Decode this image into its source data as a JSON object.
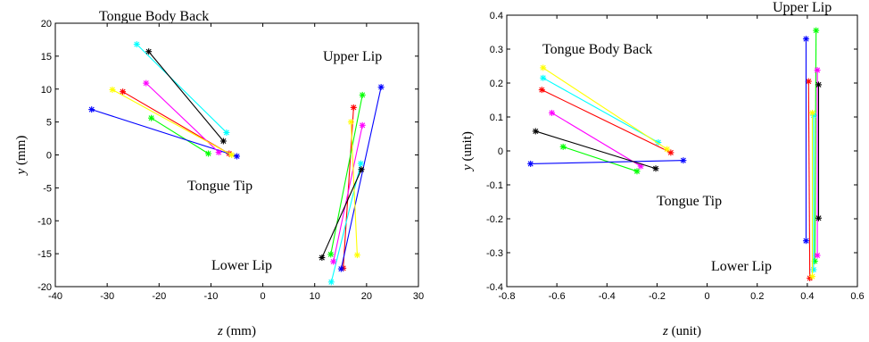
{
  "chart_data": [
    {
      "type": "line",
      "xlabel_var": "z",
      "xlabel_unit": " (mm)",
      "ylabel_var": "y",
      "ylabel_unit": " (mm)",
      "xlim": [
        -40,
        30
      ],
      "ylim": [
        -20,
        20
      ],
      "xticks": [
        -40,
        -30,
        -20,
        -10,
        0,
        10,
        20,
        30
      ],
      "yticks": [
        -20,
        -15,
        -10,
        -5,
        0,
        5,
        10,
        15,
        20
      ],
      "annotations": [
        "Tongue Body Back",
        "Tongue Tip",
        "Upper Lip",
        "Lower Lip"
      ],
      "series": [
        {
          "color": "#ff0000",
          "tongue": [
            [
              -27,
              9.6
            ],
            [
              -6.5,
              0.2
            ]
          ],
          "lip": [
            [
              17.5,
              7.2
            ],
            [
              15.5,
              -17.2
            ]
          ]
        },
        {
          "color": "#00ff00",
          "tongue": [
            [
              -21.5,
              5.6
            ],
            [
              -10.5,
              0.2
            ]
          ],
          "lip": [
            [
              19.2,
              9.1
            ],
            [
              13.1,
              -15.1
            ]
          ]
        },
        {
          "color": "#0000ff",
          "tongue": [
            [
              -33,
              6.9
            ],
            [
              -5,
              -0.2
            ]
          ],
          "lip": [
            [
              22.8,
              10.3
            ],
            [
              15.1,
              -17.3
            ]
          ]
        },
        {
          "color": "#00ffff",
          "tongue": [
            [
              -24.3,
              16.8
            ],
            [
              -7,
              3.4
            ]
          ],
          "lip": [
            [
              18.9,
              -1.3
            ],
            [
              13.2,
              -19.3
            ]
          ]
        },
        {
          "color": "#ff00ff",
          "tongue": [
            [
              -22.5,
              10.9
            ],
            [
              -8.5,
              0.4
            ]
          ],
          "lip": [
            [
              19.2,
              4.5
            ],
            [
              13.6,
              -16.2
            ]
          ]
        },
        {
          "color": "#ffff00",
          "tongue": [
            [
              -29,
              9.9
            ],
            [
              -6,
              0
            ]
          ],
          "lip": [
            [
              17,
              5
            ],
            [
              18.2,
              -15.2
            ]
          ]
        },
        {
          "color": "#000000",
          "tongue": [
            [
              -22,
              15.7
            ],
            [
              -7.6,
              2.1
            ]
          ],
          "lip": [
            [
              19,
              -2.2
            ],
            [
              11.4,
              -15.6
            ]
          ]
        }
      ]
    },
    {
      "type": "line",
      "xlabel_var": "z",
      "xlabel_unit": " (unit)",
      "ylabel_var": "y",
      "ylabel_unit": " (unit)",
      "xlim": [
        -0.8,
        0.6
      ],
      "ylim": [
        -0.4,
        0.4
      ],
      "xticks": [
        "-0.8",
        "-0.6",
        "-0.4",
        "-0.2",
        "0",
        "0.2",
        "0.4",
        "0.6"
      ],
      "yticks": [
        "-0.4",
        "-0.3",
        "-0.2",
        "-0.1",
        "0",
        "0.1",
        "0.2",
        "0.3",
        "0.4"
      ],
      "annotations": [
        "Tongue Body Back",
        "Tongue Tip",
        "Upper Lip",
        "Lower Lip"
      ],
      "series": [
        {
          "color": "#ff0000",
          "tongue": [
            [
              -0.66,
              0.18
            ],
            [
              -0.145,
              -0.005
            ]
          ],
          "lip": [
            [
              0.405,
              0.205
            ],
            [
              0.41,
              -0.375
            ]
          ]
        },
        {
          "color": "#00ff00",
          "tongue": [
            [
              -0.575,
              0.012
            ],
            [
              -0.28,
              -0.06
            ]
          ],
          "lip": [
            [
              0.435,
              0.355
            ],
            [
              0.43,
              -0.325
            ]
          ]
        },
        {
          "color": "#0000ff",
          "tongue": [
            [
              -0.705,
              -0.038
            ],
            [
              -0.095,
              -0.028
            ]
          ],
          "lip": [
            [
              0.395,
              0.33
            ],
            [
              0.395,
              -0.265
            ]
          ]
        },
        {
          "color": "#00ffff",
          "tongue": [
            [
              -0.655,
              0.215
            ],
            [
              -0.195,
              0.025
            ]
          ],
          "lip": [
            [
              0.425,
              0.105
            ],
            [
              0.425,
              -0.35
            ]
          ]
        },
        {
          "color": "#ff00ff",
          "tongue": [
            [
              -0.62,
              0.112
            ],
            [
              -0.265,
              -0.045
            ]
          ],
          "lip": [
            [
              0.44,
              0.238
            ],
            [
              0.44,
              -0.308
            ]
          ]
        },
        {
          "color": "#ffff00",
          "tongue": [
            [
              -0.655,
              0.245
            ],
            [
              -0.16,
              0.005
            ]
          ],
          "lip": [
            [
              0.42,
              0.112
            ],
            [
              0.42,
              -0.37
            ]
          ]
        },
        {
          "color": "#000000",
          "tongue": [
            [
              -0.685,
              0.058
            ],
            [
              -0.205,
              -0.052
            ]
          ],
          "lip": [
            [
              0.445,
              0.195
            ],
            [
              0.445,
              -0.198
            ]
          ]
        }
      ]
    }
  ]
}
